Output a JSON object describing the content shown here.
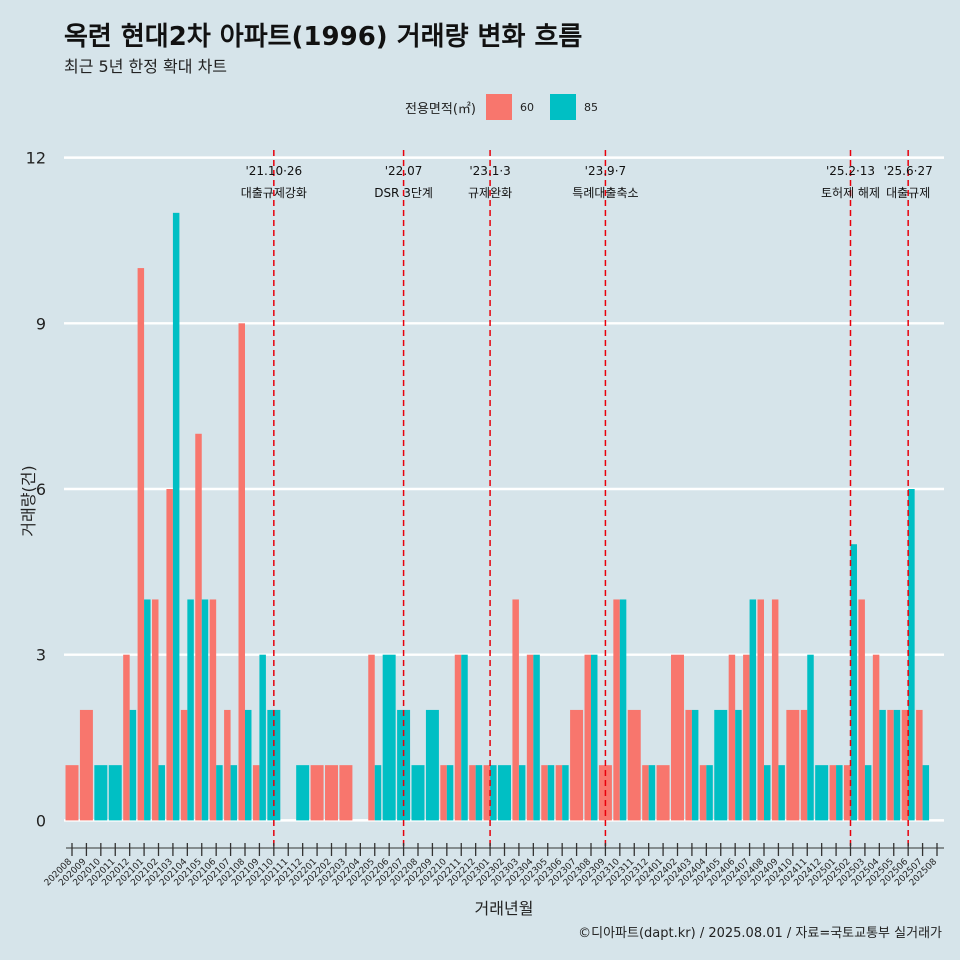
{
  "colors": {
    "s60": "#f8766d",
    "s85": "#00bfc4",
    "event_line": "#e8000b",
    "grid": "#ffffff",
    "background": "#d6e4ea"
  },
  "header": {
    "title": "옥련 현대2차 아파트(1996) 거래량 변화 흐름",
    "subtitle": "최근 5년 한정 확대 차트"
  },
  "legend": {
    "title": "전용면적(㎡)",
    "items": [
      {
        "label": "60",
        "color": "#f8766d"
      },
      {
        "label": "85",
        "color": "#00bfc4"
      }
    ]
  },
  "caption": "©디아파트(dapt.kr) / 2025.08.01 / 자료=국토교통부 실거래가",
  "chart_data": {
    "type": "bar",
    "title": "옥련 현대2차 아파트(1996) 거래량 변화 흐름",
    "xlabel": "거래년월",
    "ylabel": "거래량(건)",
    "ylim": [
      -0.5,
      12.5
    ],
    "yticks": [
      0,
      3,
      6,
      9,
      12
    ],
    "grid": true,
    "legend_position": "top",
    "categories": [
      "202008",
      "202009",
      "202010",
      "202011",
      "202012",
      "202101",
      "202102",
      "202103",
      "202104",
      "202105",
      "202106",
      "202107",
      "202108",
      "202109",
      "202110",
      "202111",
      "202112",
      "202201",
      "202202",
      "202203",
      "202204",
      "202205",
      "202206",
      "202207",
      "202208",
      "202209",
      "202210",
      "202211",
      "202212",
      "202301",
      "202302",
      "202303",
      "202304",
      "202305",
      "202306",
      "202307",
      "202308",
      "202309",
      "202310",
      "202311",
      "202312",
      "202401",
      "202402",
      "202403",
      "202404",
      "202405",
      "202406",
      "202407",
      "202408",
      "202409",
      "202410",
      "202411",
      "202412",
      "202501",
      "202502",
      "202503",
      "202504",
      "202505",
      "202506",
      "202507",
      "202508"
    ],
    "series": [
      {
        "name": "60",
        "color": "#f8766d",
        "values": [
          1,
          2,
          0,
          0,
          3,
          10,
          4,
          6,
          2,
          7,
          4,
          2,
          9,
          1,
          0,
          0,
          0,
          1,
          1,
          1,
          0,
          3,
          0,
          0,
          0,
          0,
          1,
          3,
          1,
          1,
          0,
          4,
          3,
          1,
          1,
          2,
          3,
          1,
          4,
          2,
          1,
          1,
          3,
          2,
          1,
          0,
          3,
          3,
          4,
          4,
          2,
          2,
          0,
          1,
          1,
          4,
          3,
          2,
          2,
          2,
          0
        ]
      },
      {
        "name": "85",
        "color": "#00bfc4",
        "values": [
          0,
          0,
          1,
          1,
          2,
          4,
          1,
          11,
          4,
          4,
          1,
          1,
          2,
          3,
          2,
          0,
          1,
          0,
          0,
          0,
          0,
          1,
          3,
          2,
          1,
          2,
          1,
          3,
          1,
          1,
          1,
          1,
          3,
          1,
          1,
          0,
          3,
          0,
          4,
          0,
          1,
          0,
          0,
          2,
          1,
          2,
          2,
          4,
          1,
          1,
          0,
          3,
          1,
          1,
          5,
          1,
          2,
          2,
          6,
          1,
          0
        ]
      }
    ],
    "events": [
      {
        "category": "202110",
        "date": "'21.10·26",
        "label": "대출규제강화"
      },
      {
        "category": "202207",
        "date": "'22.07",
        "label": "DSR 3단계"
      },
      {
        "category": "202301",
        "date": "'23.1·3",
        "label": "규제완화"
      },
      {
        "category": "202309",
        "date": "'23.9·7",
        "label": "특례대출축소"
      },
      {
        "category": "202502",
        "date": "'25.2·13",
        "label": "토허제 해제"
      },
      {
        "category": "202506",
        "date": "'25.6·27",
        "label": "대출규제"
      }
    ]
  }
}
